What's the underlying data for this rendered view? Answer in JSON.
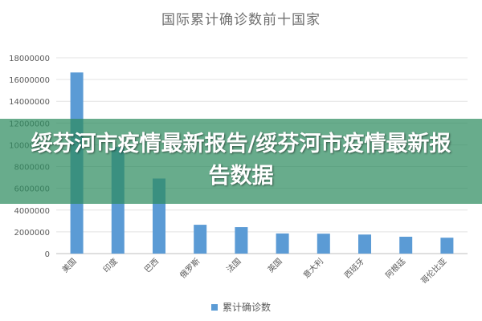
{
  "chart_data": {
    "type": "bar",
    "title": "国际累计确诊数前十国家",
    "categories": [
      "美国",
      "印度",
      "巴西",
      "俄罗斯",
      "法国",
      "英国",
      "意大利",
      "西班牙",
      "阿根廷",
      "哥伦比亚"
    ],
    "series": [
      {
        "name": "累计确诊数",
        "values": [
          16650000,
          9800000,
          6900000,
          2650000,
          2430000,
          1850000,
          1830000,
          1750000,
          1550000,
          1460000
        ]
      }
    ],
    "ylim": [
      0,
      18000000
    ],
    "yticks": [
      0,
      2000000,
      4000000,
      6000000,
      8000000,
      10000000,
      12000000,
      14000000,
      16000000,
      18000000
    ],
    "ytick_labels": [
      "0",
      "2000000",
      "4000000",
      "6000000",
      "8000000",
      "10000000",
      "12000000",
      "14000000",
      "16000000",
      "18000000"
    ],
    "grid": true,
    "legend": "bottom",
    "bar_color": "#5b9bd5"
  },
  "overlay": {
    "text": "绥芬河市疫情最新报告/绥芬河市疫情最新报告数据"
  }
}
